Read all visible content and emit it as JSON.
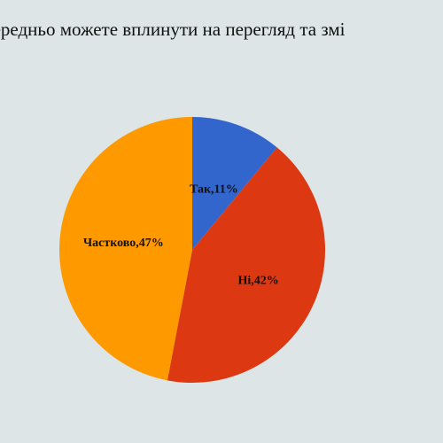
{
  "title": "середньо можете вплинути на перегляд та змі",
  "chart_data": {
    "type": "pie",
    "title": "середньо можете вплинути на перегляд та змі",
    "slices": [
      {
        "label": "Так",
        "value": 11,
        "color": "#3366cc"
      },
      {
        "label": "Ні",
        "value": 42,
        "color": "#dc3912"
      },
      {
        "label": "Частково",
        "value": 47,
        "color": "#ff9900"
      }
    ],
    "data_labels": [
      "Так,11%",
      "Ні,42%",
      "Частково,47%"
    ],
    "legend": "none"
  }
}
